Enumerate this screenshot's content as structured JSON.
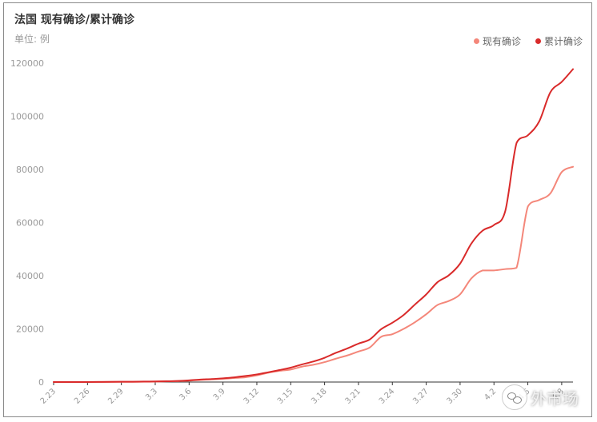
{
  "title": "法国 现有确诊/累计确诊",
  "unit_label": "单位: 例",
  "legend": [
    {
      "label": "现有确诊",
      "color": "#f4877a"
    },
    {
      "label": "累计确诊",
      "color": "#d92a2a"
    }
  ],
  "watermark_text": "外市场",
  "chart_data": {
    "type": "line",
    "title": "法国 现有确诊/累计确诊",
    "ylabel": "单位: 例",
    "ylim": [
      0,
      120000
    ],
    "yticks": [
      0,
      20000,
      40000,
      60000,
      80000,
      100000,
      120000
    ],
    "grid": false,
    "legend_position": "top-right",
    "xlabels_shown": [
      "2.23",
      "2.26",
      "2.29",
      "3.3",
      "3.6",
      "3.9",
      "3.12",
      "3.15",
      "3.18",
      "3.21",
      "3.24",
      "3.27",
      "3.30",
      "4.2",
      "4.5",
      "4.8"
    ],
    "x": [
      "2.23",
      "2.24",
      "2.25",
      "2.26",
      "2.27",
      "2.28",
      "2.29",
      "3.1",
      "3.2",
      "3.3",
      "3.4",
      "3.5",
      "3.6",
      "3.7",
      "3.8",
      "3.9",
      "3.10",
      "3.11",
      "3.12",
      "3.13",
      "3.14",
      "3.15",
      "3.16",
      "3.17",
      "3.18",
      "3.19",
      "3.20",
      "3.21",
      "3.22",
      "3.23",
      "3.24",
      "3.25",
      "3.26",
      "3.27",
      "3.28",
      "3.29",
      "3.30",
      "3.31",
      "4.1",
      "4.2",
      "4.3",
      "4.4",
      "4.5",
      "4.6",
      "4.7",
      "4.8",
      "4.9"
    ],
    "series": [
      {
        "name": "现有确诊",
        "color": "#f4877a",
        "values": [
          8,
          8,
          8,
          8,
          20,
          40,
          60,
          80,
          100,
          150,
          250,
          350,
          500,
          800,
          1000,
          1200,
          1500,
          1800,
          2500,
          3500,
          4200,
          4700,
          5800,
          6500,
          7500,
          8800,
          10000,
          11500,
          13000,
          17000,
          18000,
          20000,
          22500,
          25500,
          29000,
          30500,
          33000,
          39000,
          42000,
          42000,
          42500,
          43000,
          66000,
          68500,
          71000,
          79000,
          81000
        ]
      },
      {
        "name": "累计确诊",
        "color": "#d92a2a",
        "values": [
          12,
          12,
          14,
          18,
          38,
          57,
          100,
          130,
          191,
          212,
          285,
          423,
          653,
          949,
          1126,
          1412,
          1784,
          2281,
          2876,
          3661,
          4499,
          5423,
          6633,
          7730,
          9134,
          10995,
          12612,
          14459,
          16018,
          19856,
          22304,
          25233,
          29155,
          32964,
          37575,
          40174,
          44550,
          52128,
          56989,
          59105,
          64338,
          89953,
          92839,
          98010,
          109069,
          112950,
          117749
        ]
      }
    ]
  }
}
